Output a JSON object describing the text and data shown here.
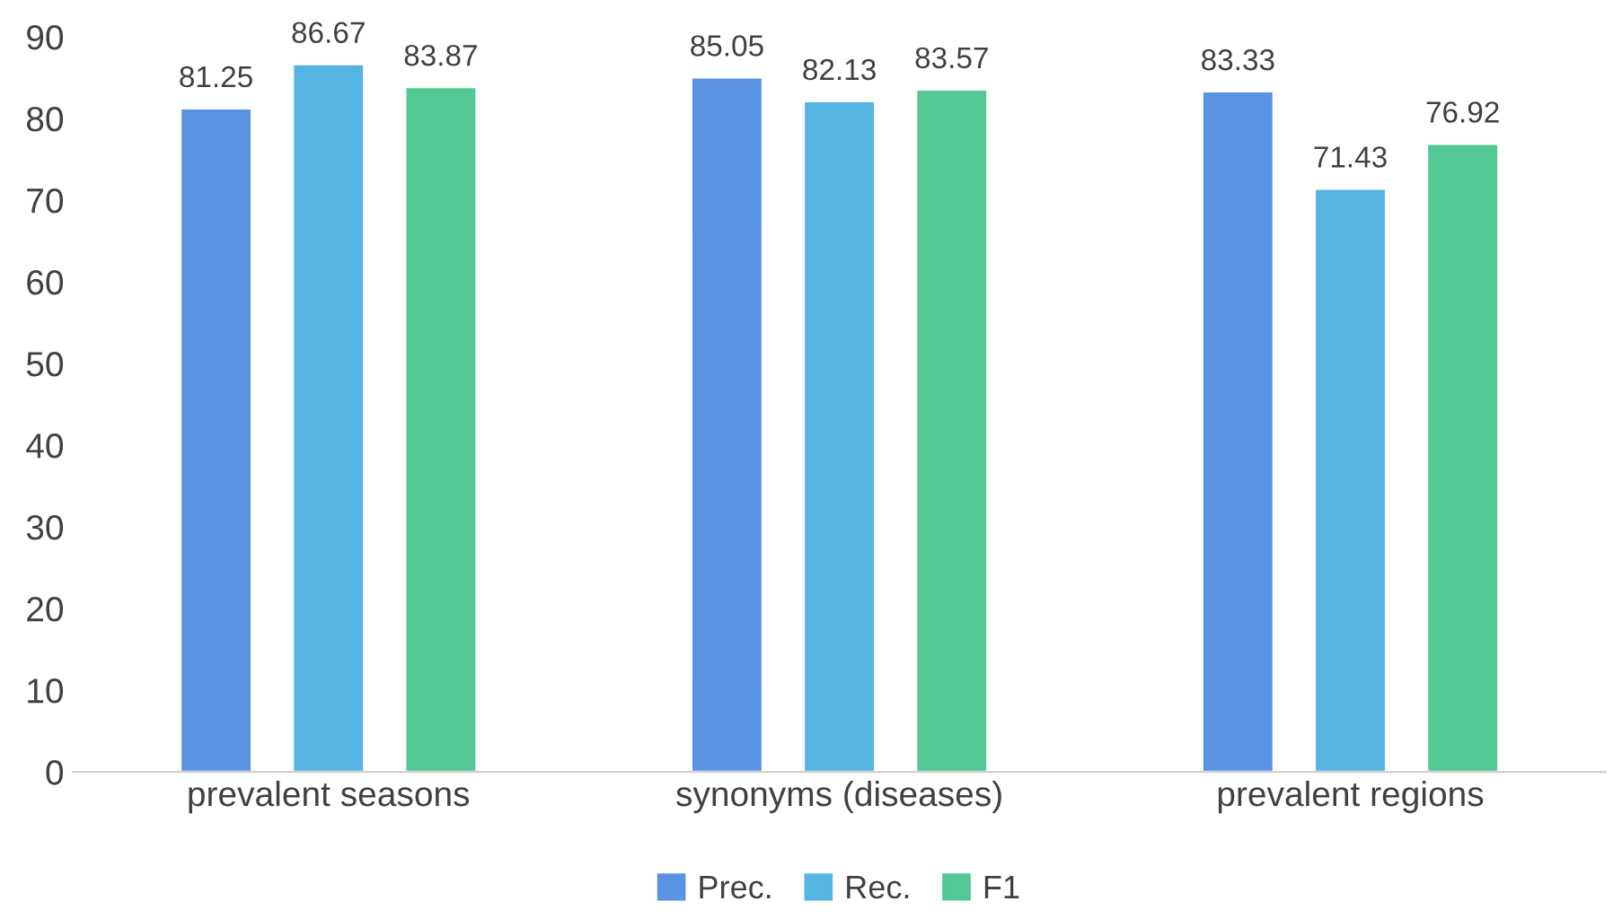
{
  "chart_data": {
    "type": "bar",
    "categories": [
      "prevalent seasons",
      "synonyms (diseases)",
      "prevalent regions"
    ],
    "series": [
      {
        "name": "Prec.",
        "color": "#5b93e3",
        "values": [
          81.25,
          85.05,
          83.33
        ]
      },
      {
        "name": "Rec.",
        "color": "#56b4e3",
        "values": [
          86.67,
          82.13,
          71.43
        ]
      },
      {
        "name": "F1",
        "color": "#52c893",
        "values": [
          83.87,
          83.57,
          76.92
        ]
      }
    ],
    "ylim": [
      0,
      90
    ],
    "yticks": [
      0,
      10,
      20,
      30,
      40,
      50,
      60,
      70,
      80,
      90
    ],
    "grid": false,
    "legend": "bottom",
    "data_labels": true
  }
}
